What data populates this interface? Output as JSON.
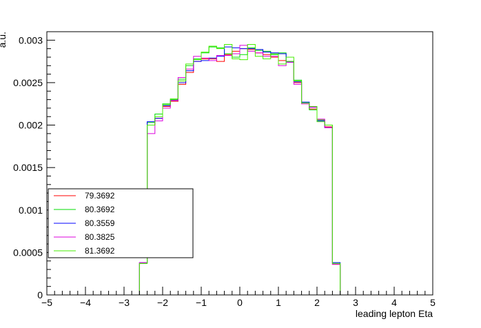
{
  "chart_data": {
    "type": "line",
    "title": "",
    "xlabel": "leading lepton Eta",
    "ylabel": "a.u.",
    "xlim": [
      -5,
      5
    ],
    "ylim": [
      0,
      0.0031
    ],
    "x_ticks": [
      "−5",
      "−4",
      "−3",
      "−2",
      "−1",
      "0",
      "1",
      "2",
      "3",
      "4",
      "5"
    ],
    "y_ticks": [
      "0",
      "0.0005",
      "0.001",
      "0.0015",
      "0.002",
      "0.0025",
      "0.003"
    ],
    "grid": false,
    "legend_position": "bottom-left",
    "bins": {
      "start": -2.6,
      "width": 0.2,
      "count": 26
    },
    "series": [
      {
        "name": "79.3692",
        "color": "#ff0000",
        "values": [
          0.00038,
          0.002,
          0.00208,
          0.00222,
          0.00228,
          0.00248,
          0.00262,
          0.00275,
          0.00278,
          0.00278,
          0.00275,
          0.00283,
          0.00287,
          0.0029,
          0.00289,
          0.00285,
          0.00283,
          0.0028,
          0.00276,
          0.00275,
          0.0025,
          0.00226,
          0.00219,
          0.00206,
          0.00198,
          0.00036
        ]
      },
      {
        "name": "80.3692",
        "color": "#00dd00",
        "values": [
          0.00037,
          0.00203,
          0.00213,
          0.00225,
          0.0023,
          0.00254,
          0.0027,
          0.00278,
          0.00285,
          0.00292,
          0.00291,
          0.00284,
          0.0028,
          0.00283,
          0.00291,
          0.00288,
          0.00287,
          0.00283,
          0.00285,
          0.00275,
          0.00253,
          0.00227,
          0.00218,
          0.00206,
          0.002,
          0.00038
        ]
      },
      {
        "name": "80.3559",
        "color": "#0000ff",
        "values": [
          0.00038,
          0.00204,
          0.00208,
          0.00223,
          0.00229,
          0.0025,
          0.00264,
          0.00275,
          0.00276,
          0.00279,
          0.00281,
          0.00292,
          0.00291,
          0.0029,
          0.0029,
          0.00289,
          0.00286,
          0.00285,
          0.00284,
          0.00274,
          0.00251,
          0.00227,
          0.00221,
          0.00205,
          0.00197,
          0.00038
        ]
      },
      {
        "name": "80.3825",
        "color": "#dd00dd",
        "values": [
          0.00038,
          0.0019,
          0.00205,
          0.0022,
          0.00229,
          0.00256,
          0.00266,
          0.00281,
          0.00279,
          0.00276,
          0.00282,
          0.00282,
          0.00284,
          0.00294,
          0.00287,
          0.00285,
          0.00281,
          0.00281,
          0.0027,
          0.00274,
          0.00248,
          0.00225,
          0.00221,
          0.00207,
          0.00197,
          0.00036
        ]
      },
      {
        "name": "81.3692",
        "color": "#44ee00",
        "values": [
          0.00037,
          0.002,
          0.0021,
          0.00224,
          0.00231,
          0.00252,
          0.00272,
          0.00277,
          0.00286,
          0.00293,
          0.0029,
          0.00295,
          0.00278,
          0.00277,
          0.00295,
          0.00281,
          0.00278,
          0.00284,
          0.00272,
          0.0028,
          0.00252,
          0.00226,
          0.00222,
          0.00204,
          0.002,
          0.00037
        ]
      }
    ]
  }
}
